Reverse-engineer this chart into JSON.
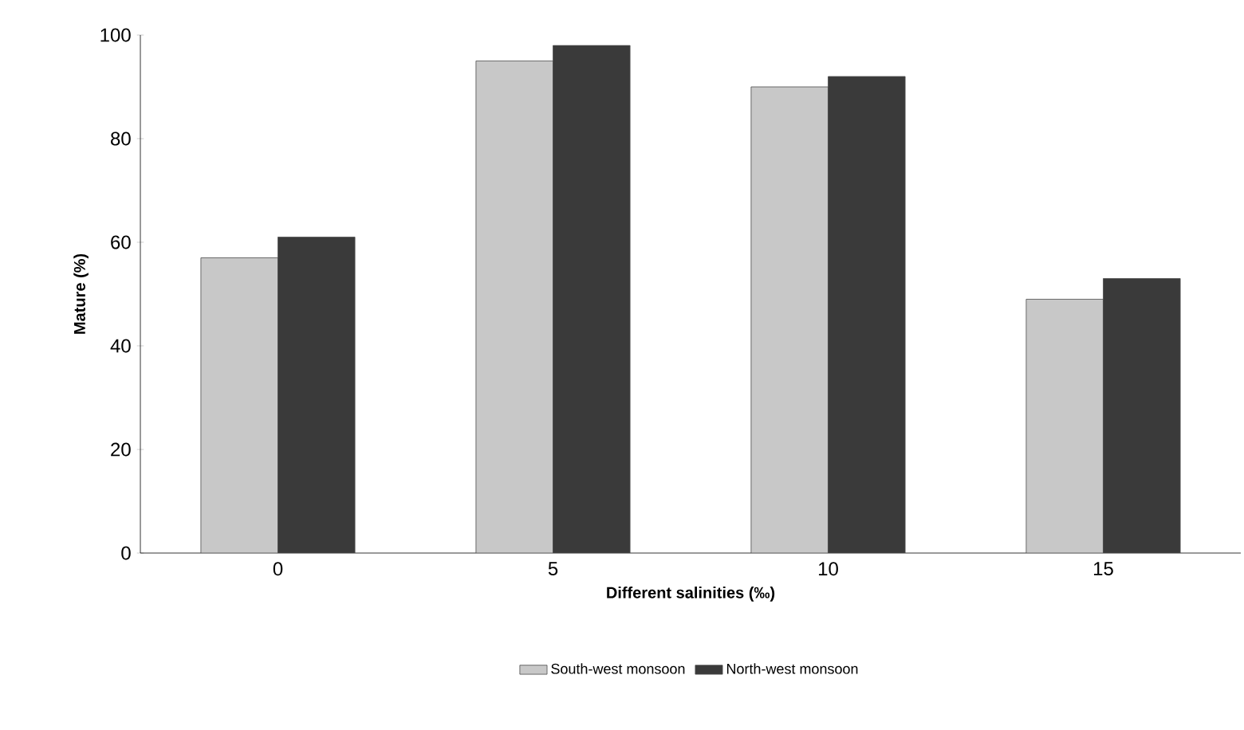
{
  "chart_data": {
    "type": "bar",
    "xlabel": "Different salinities (‰)",
    "ylabel": "Mature (%)",
    "categories": [
      "0",
      "5",
      "10",
      "15"
    ],
    "series": [
      {
        "name": "South-west monsoon",
        "color": "#c8c8c8",
        "values": [
          57,
          95,
          90,
          49
        ]
      },
      {
        "name": "North-west monsoon",
        "color": "#3a3a3a",
        "values": [
          61,
          98,
          92,
          53
        ]
      }
    ],
    "ylim": [
      0,
      100
    ],
    "yticks": [
      0,
      20,
      40,
      60,
      80,
      100
    ],
    "legend": "bottom"
  }
}
